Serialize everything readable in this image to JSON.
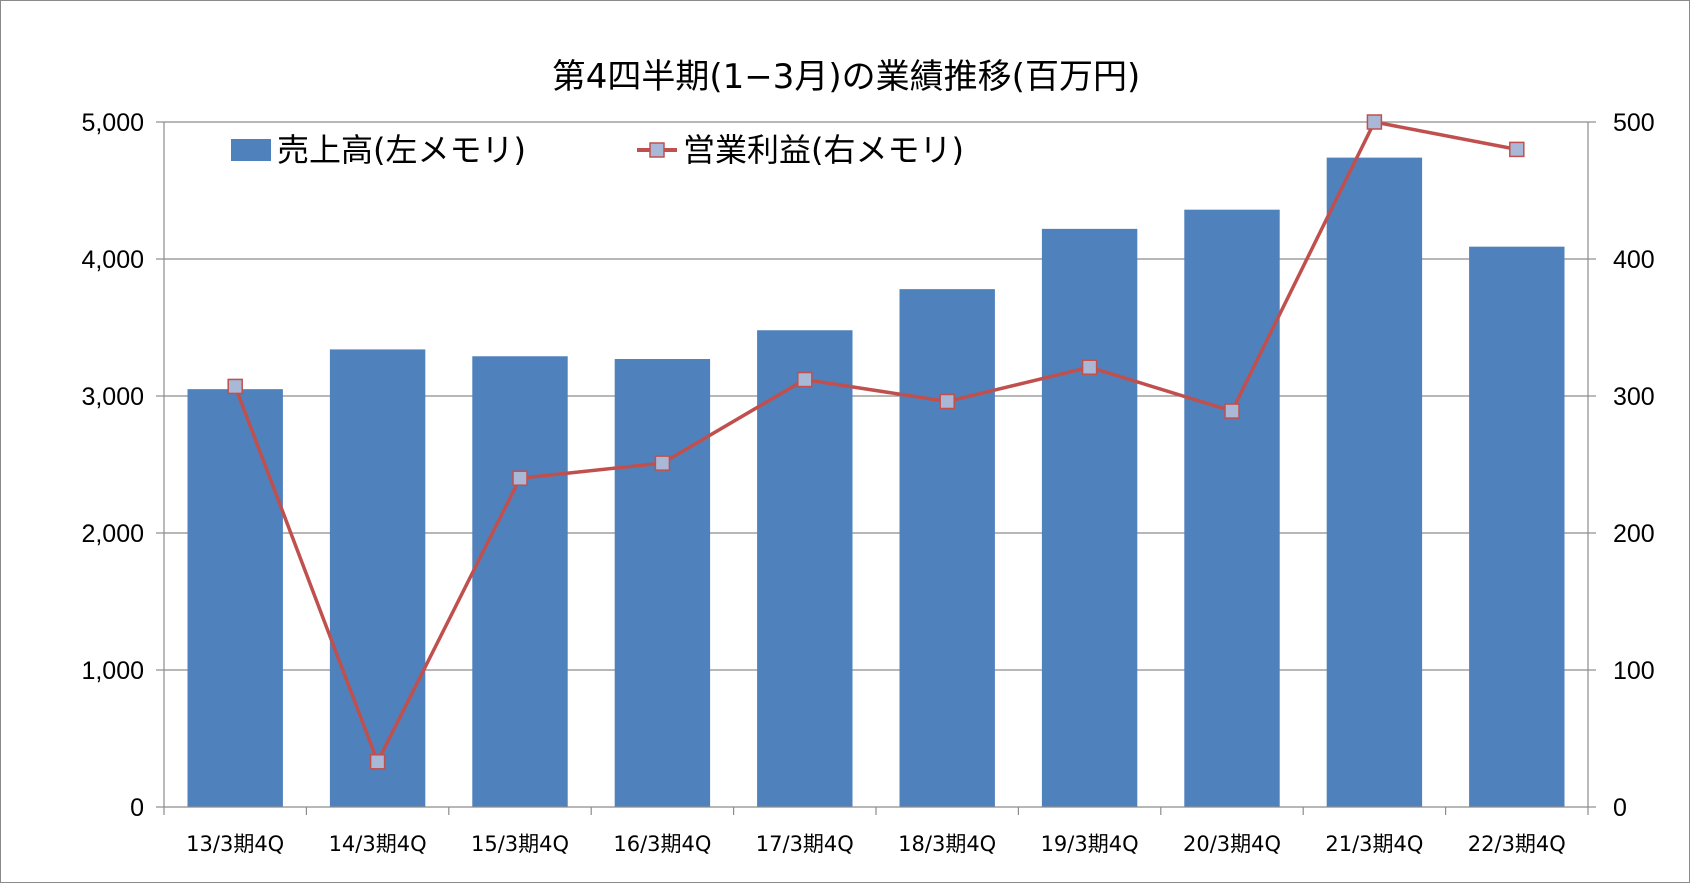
{
  "chart_data": {
    "type": "bar+line",
    "title": "第4四半期(1−3月)の業績推移(百万円)",
    "categories": [
      "13/3期4Q",
      "14/3期4Q",
      "15/3期4Q",
      "16/3期4Q",
      "17/3期4Q",
      "18/3期4Q",
      "19/3期4Q",
      "20/3期4Q",
      "21/3期4Q",
      "22/3期4Q"
    ],
    "series": [
      {
        "name": "売上高(左メモリ)",
        "type": "bar",
        "axis": "left",
        "color": "#4f81bd",
        "values": [
          3050,
          3340,
          3290,
          3270,
          3480,
          3780,
          4220,
          4360,
          4740,
          4090
        ]
      },
      {
        "name": "営業利益(右メモリ)",
        "type": "line",
        "axis": "right",
        "color": "#c0504d",
        "marker_color": "#a9b8d6",
        "values": [
          307,
          33,
          240,
          251,
          312,
          296,
          321,
          289,
          500,
          480
        ]
      }
    ],
    "y_left": {
      "min": 0,
      "max": 5000,
      "ticks": [
        0,
        1000,
        2000,
        3000,
        4000,
        5000
      ],
      "tick_labels": [
        "0",
        "1,000",
        "2,000",
        "3,000",
        "4,000",
        "5,000"
      ]
    },
    "y_right": {
      "min": 0,
      "max": 500,
      "ticks": [
        0,
        100,
        200,
        300,
        400,
        500
      ],
      "tick_labels": [
        "0",
        "100",
        "200",
        "300",
        "400",
        "500"
      ]
    },
    "grid": true,
    "legend_position": "top-left"
  }
}
